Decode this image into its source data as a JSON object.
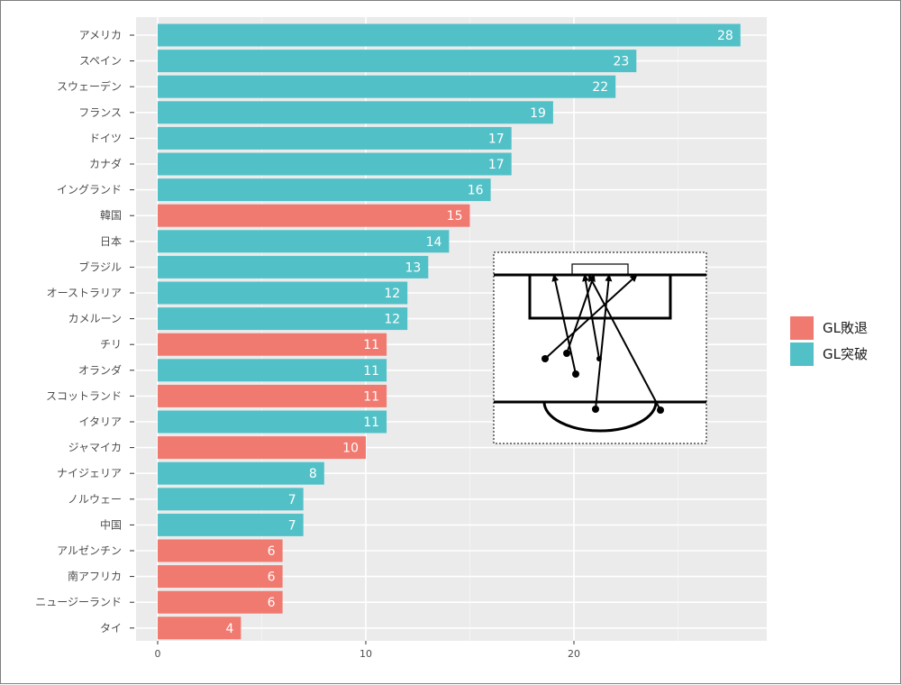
{
  "chart_data": {
    "type": "bar",
    "orientation": "horizontal",
    "categories": [
      "アメリカ",
      "スペイン",
      "スウェーデン",
      "フランス",
      "ドイツ",
      "カナダ",
      "イングランド",
      "韓国",
      "日本",
      "ブラジル",
      "オーストラリア",
      "カメルーン",
      "チリ",
      "オランダ",
      "スコットランド",
      "イタリア",
      "ジャマイカ",
      "ナイジェリア",
      "ノルウェー",
      "中国",
      "アルゼンチン",
      "南アフリカ",
      "ニュージーランド",
      "タイ"
    ],
    "values": [
      28,
      23,
      22,
      19,
      17,
      17,
      16,
      15,
      14,
      13,
      12,
      12,
      11,
      11,
      11,
      11,
      10,
      8,
      7,
      7,
      6,
      6,
      6,
      4
    ],
    "groups": [
      "GL突破",
      "GL突破",
      "GL突破",
      "GL突破",
      "GL突破",
      "GL突破",
      "GL突破",
      "GL敗退",
      "GL突破",
      "GL突破",
      "GL突破",
      "GL突破",
      "GL敗退",
      "GL突破",
      "GL敗退",
      "GL突破",
      "GL敗退",
      "GL突破",
      "GL突破",
      "GL突破",
      "GL敗退",
      "GL敗退",
      "GL敗退",
      "GL敗退"
    ],
    "xlim": [
      0,
      29
    ],
    "xticks": [
      0,
      10,
      20
    ],
    "legend": {
      "position": "right",
      "entries": [
        {
          "label": "GL敗退",
          "color": "#F8766D"
        },
        {
          "label": "GL突破",
          "color": "#00BFC4"
        }
      ]
    },
    "colors": {
      "GL敗退": "#F07970",
      "GL突破": "#52C1C7",
      "panel": "#EBEBEB",
      "grid": "#FFFFFF"
    }
  },
  "inset": {
    "type": "pitch-diagram",
    "icon": "shot-arrow-diagram"
  }
}
